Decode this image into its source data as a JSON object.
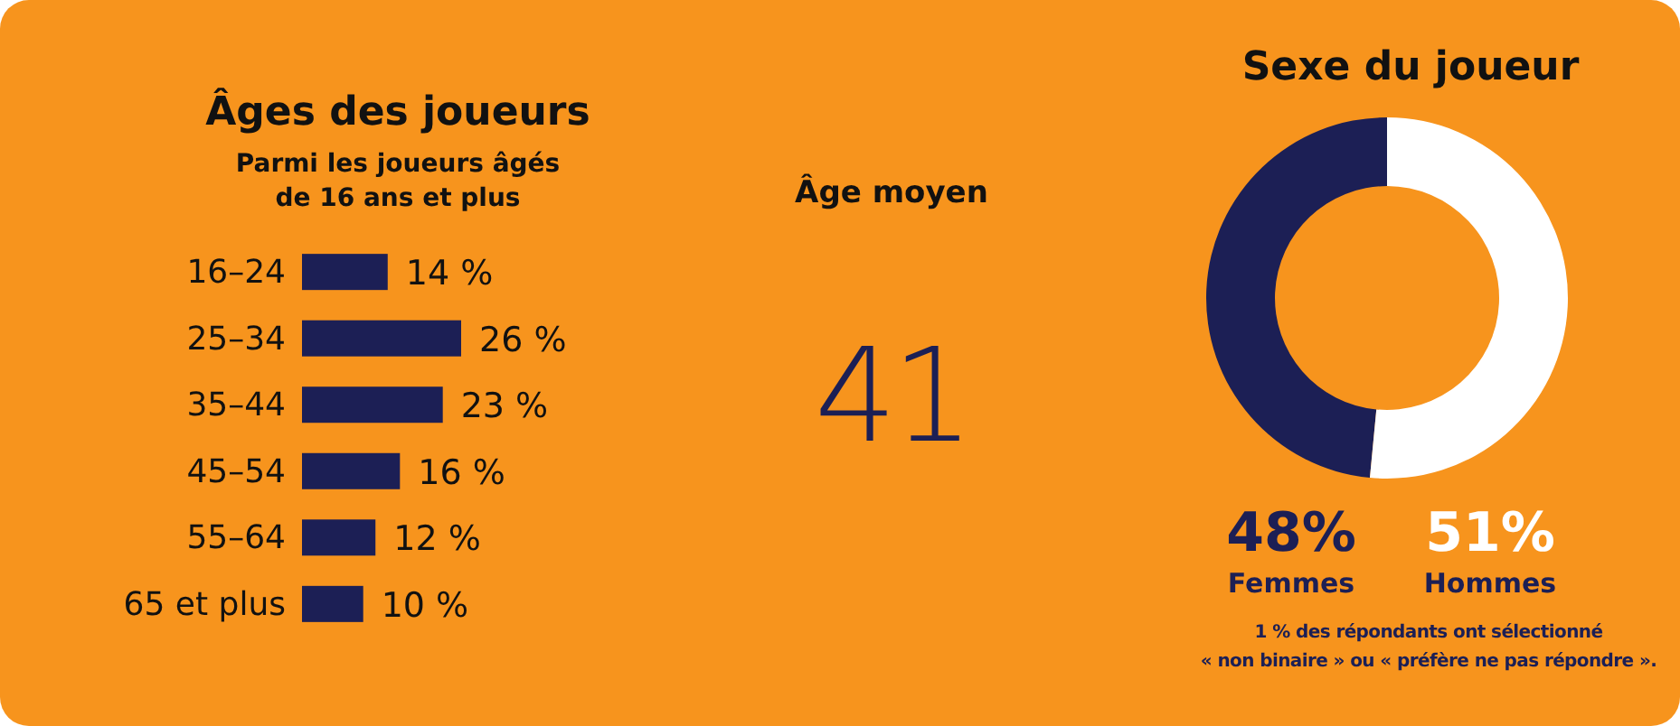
{
  "chart_data": [
    {
      "type": "bar",
      "orientation": "horizontal",
      "title": "Âges des joueurs",
      "subtitle": "Parmi les joueurs âgés\nde 16 ans et plus",
      "categories": [
        "16–24",
        "25–34",
        "35–44",
        "45–54",
        "55–64",
        "65 et plus"
      ],
      "values": [
        14,
        26,
        23,
        16,
        12,
        10
      ],
      "value_labels": [
        "14 %",
        "26 %",
        "23 %",
        "16 %",
        "12 %",
        "10 %"
      ],
      "color": "#1c1f55"
    },
    {
      "type": "other",
      "title": "Âge moyen",
      "annotations": [
        "41"
      ]
    },
    {
      "type": "donut",
      "title": "Sexe du joueur",
      "categories": [
        "Femmes",
        "Hommes"
      ],
      "values": [
        48,
        51
      ],
      "colors": [
        "#1c1f55",
        "#ffffff"
      ],
      "value_labels": [
        "48%",
        "51%"
      ],
      "annotations": [
        "1 % des répondants ont sélectionné\n« non binaire » ou « préfère ne pas répondre »."
      ]
    }
  ]
}
